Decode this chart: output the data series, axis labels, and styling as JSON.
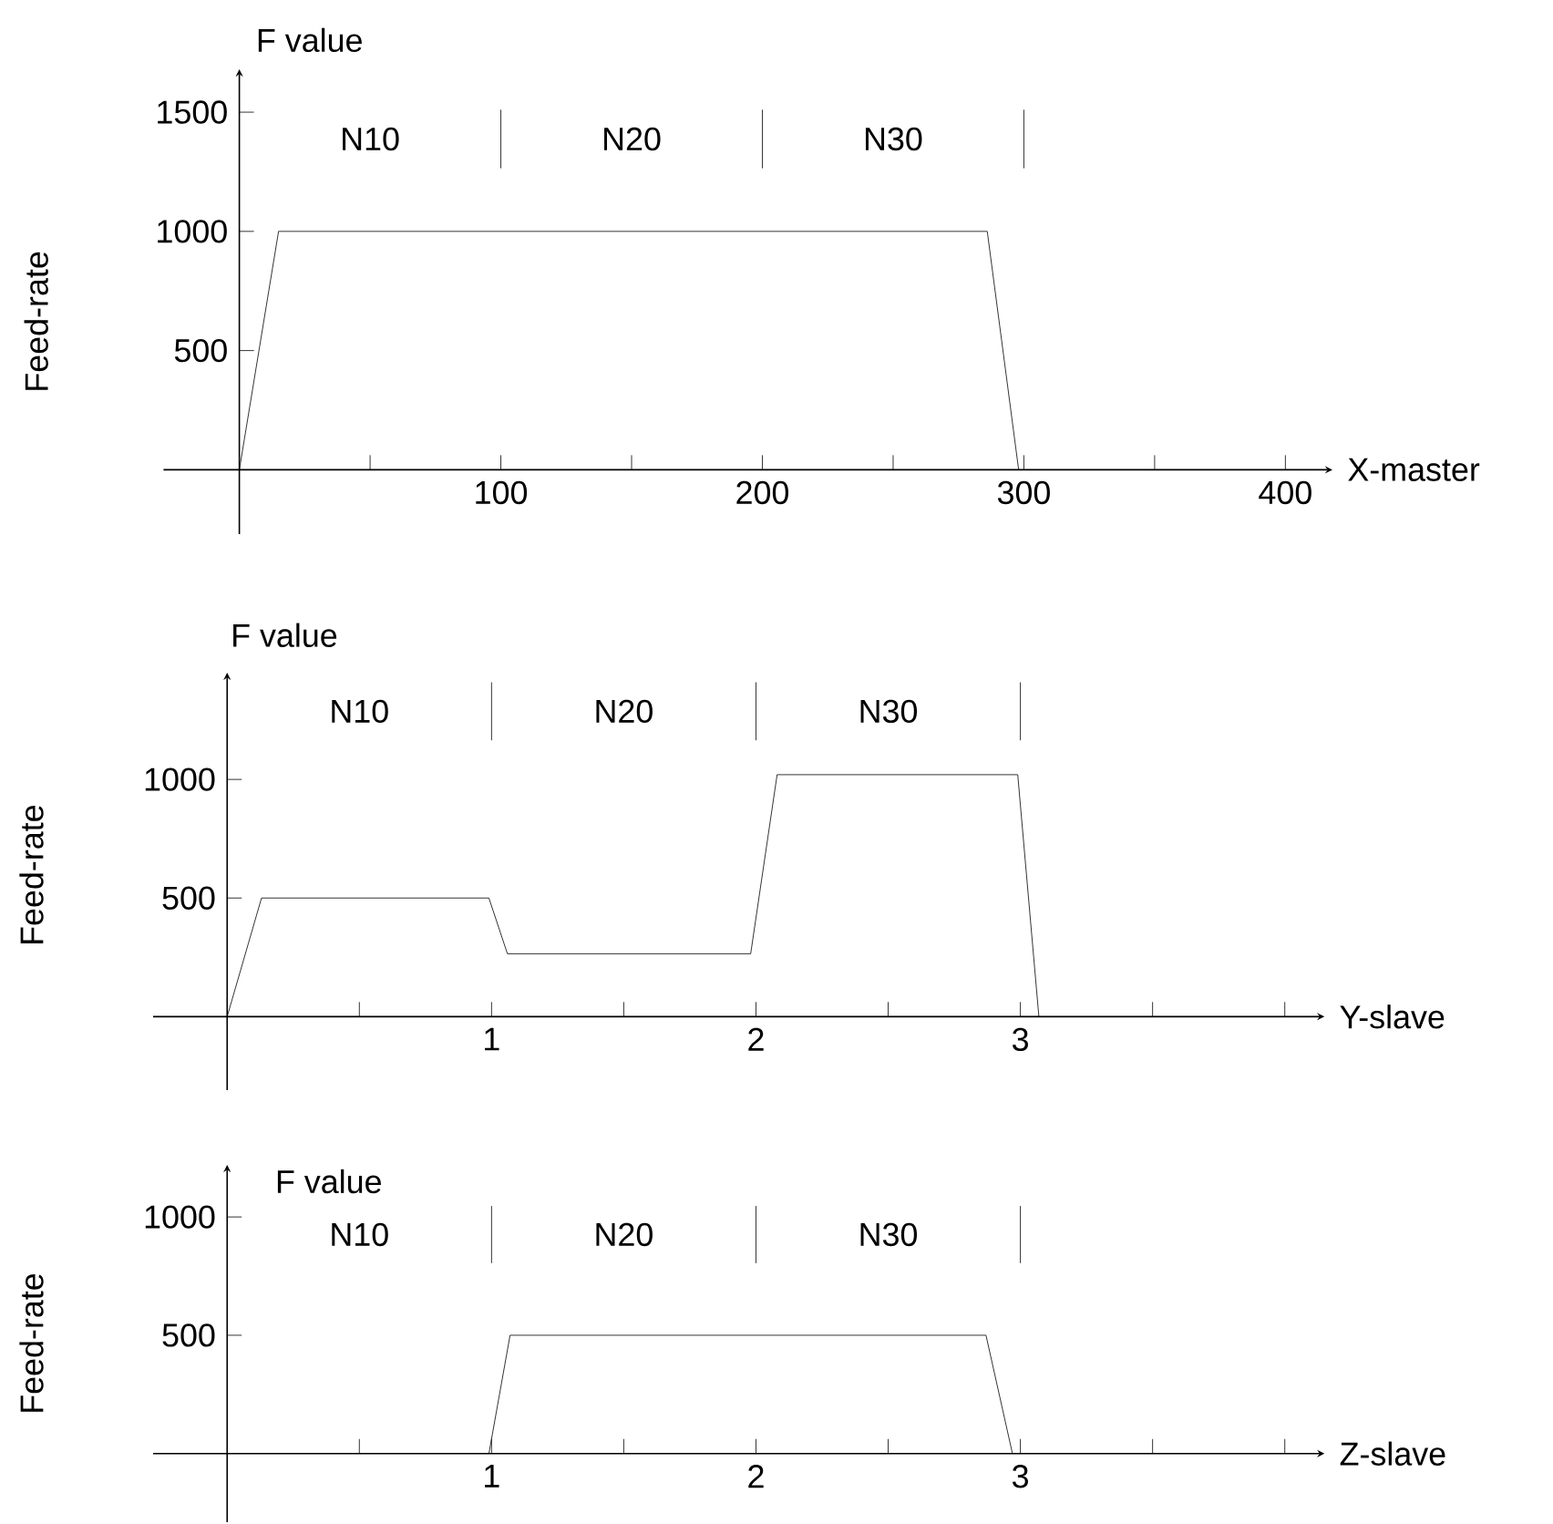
{
  "chart_data": [
    {
      "type": "line",
      "xlabel": "X-master",
      "ylabel": "Feed-rate",
      "color": "#000000",
      "marker": "none",
      "line_style": "solid",
      "x": [
        0,
        15,
        286,
        298
      ],
      "values": [
        0,
        1000,
        1000,
        0
      ],
      "xlim": [
        -29,
        418
      ],
      "ylim": [
        -270,
        1680
      ],
      "xticks": [
        {
          "value": 50,
          "label": null
        },
        100,
        {
          "value": 150,
          "label": null
        },
        200,
        {
          "value": 250,
          "label": null
        },
        300,
        {
          "value": 350,
          "label": null
        },
        400
      ],
      "yticks": [
        500,
        1000,
        1500
      ],
      "ref_lines": [
        {
          "axis": "x",
          "value": 100
        },
        {
          "axis": "x",
          "value": 200
        },
        {
          "axis": "x",
          "value": 300
        }
      ],
      "annotations": [
        "F value",
        "N10",
        "N20",
        "N30"
      ]
    },
    {
      "type": "line",
      "xlabel": "Y-slave",
      "ylabel": "Feed-rate",
      "color": "#000000",
      "marker": "none",
      "line_style": "solid",
      "x": [
        0,
        0.13,
        0.99,
        1.06,
        1.98,
        2.08,
        2.99,
        3.07
      ],
      "values": [
        0,
        500,
        500,
        265,
        265,
        1020,
        1020,
        0
      ],
      "xlim": [
        -0.28,
        4.15
      ],
      "ylim": [
        -310,
        1450
      ],
      "xticks": [
        {
          "value": 0.5,
          "label": null
        },
        1,
        {
          "value": 1.5,
          "label": null
        },
        2,
        {
          "value": 2.5,
          "label": null
        },
        3,
        {
          "value": 3.5,
          "label": null
        },
        {
          "value": 4,
          "label": null
        }
      ],
      "yticks": [
        500,
        1000
      ],
      "ref_lines": [
        {
          "axis": "x",
          "value": 1
        },
        {
          "axis": "x",
          "value": 2
        },
        {
          "axis": "x",
          "value": 3
        }
      ],
      "annotations": [
        "F value",
        "N10",
        "N20",
        "N30"
      ]
    },
    {
      "type": "line",
      "xlabel": "Z-slave",
      "ylabel": "Feed-rate",
      "color": "#000000",
      "marker": "none",
      "line_style": "solid",
      "x": [
        0.99,
        1.07,
        2.87,
        2.97
      ],
      "values": [
        0,
        500,
        500,
        0
      ],
      "xlim": [
        -0.28,
        4.15
      ],
      "ylim": [
        -290,
        1220
      ],
      "xticks": [
        {
          "value": 0.5,
          "label": null
        },
        1,
        {
          "value": 1.5,
          "label": null
        },
        2,
        {
          "value": 2.5,
          "label": null
        },
        3,
        {
          "value": 3.5,
          "label": null
        },
        {
          "value": 4,
          "label": null
        }
      ],
      "yticks": [
        500,
        1000
      ],
      "ref_lines": [
        {
          "axis": "x",
          "value": 1
        },
        {
          "axis": "x",
          "value": 2
        },
        {
          "axis": "x",
          "value": 3
        }
      ],
      "annotations": [
        "F value",
        "N10",
        "N20",
        "N30"
      ]
    }
  ]
}
